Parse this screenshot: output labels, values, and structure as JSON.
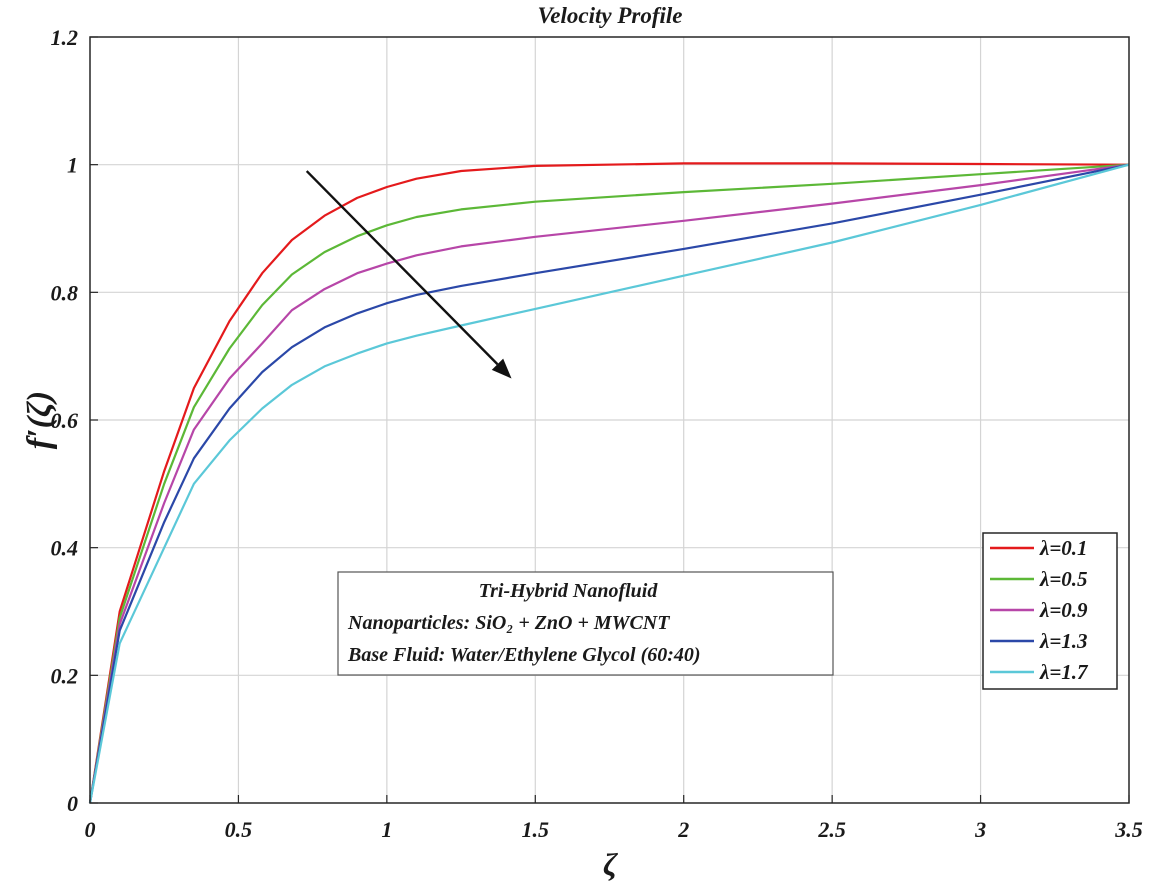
{
  "chart_data": {
    "type": "line",
    "title": "Velocity Profile",
    "xlabel": "ζ",
    "ylabel": "f′(ζ)",
    "xlim": [
      0,
      3.5
    ],
    "ylim": [
      0,
      1.2
    ],
    "xticks": [
      0,
      0.5,
      1,
      1.5,
      2,
      2.5,
      3,
      3.5
    ],
    "xtick_labels": [
      "0",
      "0.5",
      "1",
      "1.5",
      "2",
      "2.5",
      "3",
      "3.5"
    ],
    "yticks": [
      0,
      0.2,
      0.4,
      0.6,
      0.8,
      1,
      1.2
    ],
    "ytick_labels": [
      "0",
      "0.2",
      "0.4",
      "0.6",
      "0.8",
      "1",
      "1.2"
    ],
    "grid": true,
    "legend_position": "bottom-right",
    "x": [
      0,
      0.1,
      0.25,
      0.35,
      0.47,
      0.58,
      0.68,
      0.79,
      0.9,
      1.0,
      1.1,
      1.25,
      1.5,
      2.0,
      2.5,
      3.0,
      3.5
    ],
    "series": [
      {
        "name": "λ=0.1",
        "color": "#e41a1c",
        "values": [
          0,
          0.3,
          0.52,
          0.65,
          0.755,
          0.83,
          0.882,
          0.92,
          0.948,
          0.965,
          0.978,
          0.99,
          0.998,
          1.002,
          1.002,
          1.001,
          1.0
        ]
      },
      {
        "name": "λ=0.5",
        "color": "#5cb837",
        "values": [
          0,
          0.29,
          0.5,
          0.62,
          0.712,
          0.78,
          0.828,
          0.863,
          0.888,
          0.905,
          0.918,
          0.93,
          0.942,
          0.957,
          0.97,
          0.985,
          1.0
        ]
      },
      {
        "name": "λ=0.9",
        "color": "#b746a8",
        "values": [
          0,
          0.28,
          0.47,
          0.585,
          0.665,
          0.72,
          0.772,
          0.805,
          0.83,
          0.845,
          0.858,
          0.872,
          0.887,
          0.912,
          0.939,
          0.968,
          1.0
        ]
      },
      {
        "name": "λ=1.3",
        "color": "#2b48a8",
        "values": [
          0,
          0.27,
          0.44,
          0.54,
          0.618,
          0.675,
          0.714,
          0.745,
          0.767,
          0.783,
          0.796,
          0.81,
          0.83,
          0.868,
          0.908,
          0.953,
          1.0
        ]
      },
      {
        "name": "λ=1.7",
        "color": "#5bc8d8",
        "values": [
          0,
          0.25,
          0.4,
          0.5,
          0.568,
          0.618,
          0.655,
          0.684,
          0.704,
          0.72,
          0.732,
          0.748,
          0.774,
          0.826,
          0.878,
          0.937,
          1.0
        ]
      }
    ],
    "annotations": {
      "arrow": {
        "from": [
          0.73,
          0.99
        ],
        "to": [
          1.42,
          0.665
        ],
        "color": "#111111"
      },
      "textbox_lines": [
        "Tri-Hybrid Nanofluid",
        "Nanoparticles:  SiO₂ + ZnO + MWCNT",
        "Base Fluid: Water/Ethylene Glycol (60:40)"
      ]
    }
  }
}
